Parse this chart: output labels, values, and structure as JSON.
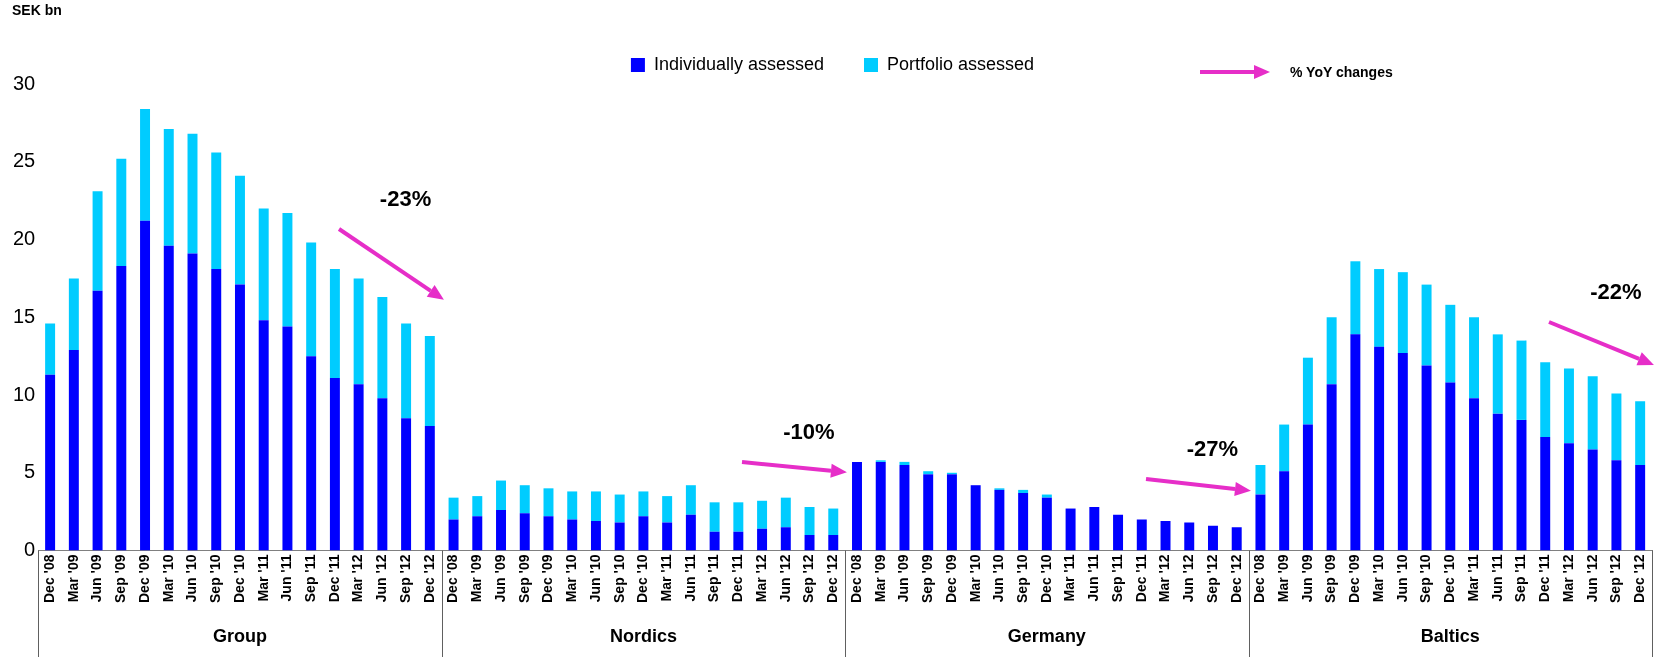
{
  "chart_data": {
    "type": "bar",
    "stacked": true,
    "ylabel": "SEK bn",
    "ylim": [
      0,
      30
    ],
    "yticks": [
      0,
      5,
      10,
      15,
      20,
      25,
      30
    ],
    "grid": false,
    "legend": "top",
    "categories": [
      "Dec '08",
      "Mar '09",
      "Jun '09",
      "Sep '09",
      "Dec '09",
      "Mar '10",
      "Jun '10",
      "Sep '10",
      "Dec '10",
      "Mar '11",
      "Jun '11",
      "Sep '11",
      "Dec '11",
      "Mar '12",
      "Jun '12",
      "Sep '12",
      "Dec '12",
      "Dec '08",
      "Mar '09",
      "Jun '09",
      "Sep '09",
      "Dec '09",
      "Mar '10",
      "Jun '10",
      "Sep '10",
      "Dec '10",
      "Mar '11",
      "Jun '11",
      "Sep '11",
      "Dec '11",
      "Mar '12",
      "Jun '12",
      "Sep '12",
      "Dec '12",
      "Dec '08",
      "Mar '09",
      "Jun '09",
      "Sep '09",
      "Dec '09",
      "Mar '10",
      "Jun '10",
      "Sep '10",
      "Dec '10",
      "Mar '11",
      "Jun '11",
      "Sep '11",
      "Dec '11",
      "Mar '12",
      "Jun '12",
      "Sep '12",
      "Dec '12",
      "Dec '08",
      "Mar '09",
      "Jun '09",
      "Sep '09",
      "Dec '09",
      "Mar '10",
      "Jun '10",
      "Sep '10",
      "Dec '10",
      "Mar '11",
      "Jun '11",
      "Sep '11",
      "Dec '11",
      "Mar '12",
      "Jun '12",
      "Sep '12",
      "Dec '12"
    ],
    "series": [
      {
        "name": "Individually assessed",
        "color": "#0000ff",
        "values": [
          11.3,
          12.9,
          16.7,
          18.3,
          21.2,
          19.6,
          19.1,
          18.1,
          17.1,
          14.8,
          14.4,
          12.5,
          11.1,
          10.7,
          9.8,
          8.5,
          8.0,
          2.0,
          2.2,
          2.6,
          2.4,
          2.2,
          2.0,
          1.9,
          1.8,
          2.2,
          1.8,
          2.3,
          1.2,
          1.2,
          1.4,
          1.5,
          1.0,
          1.0,
          5.7,
          5.7,
          5.5,
          4.9,
          4.9,
          4.2,
          3.9,
          3.7,
          3.4,
          2.7,
          2.8,
          2.3,
          2.0,
          1.9,
          1.8,
          1.6,
          1.5,
          3.6,
          5.1,
          8.1,
          10.7,
          13.9,
          13.1,
          12.7,
          11.9,
          10.8,
          9.8,
          8.8,
          8.4,
          7.3,
          6.9,
          6.5,
          5.8,
          5.5
        ]
      },
      {
        "name": "Portfolio assessed",
        "color": "#00ccff",
        "values": [
          3.3,
          4.6,
          6.4,
          6.9,
          7.2,
          7.5,
          7.7,
          7.5,
          7.0,
          7.2,
          7.3,
          7.3,
          7.0,
          6.8,
          6.5,
          6.1,
          5.8,
          1.4,
          1.3,
          1.9,
          1.8,
          1.8,
          1.8,
          1.9,
          1.8,
          1.6,
          1.7,
          1.9,
          1.9,
          1.9,
          1.8,
          1.9,
          1.8,
          1.7,
          0,
          0.1,
          0.2,
          0.2,
          0.1,
          0,
          0.1,
          0.2,
          0.2,
          0,
          0,
          0,
          0,
          0,
          0,
          0,
          0,
          1.9,
          3.0,
          4.3,
          4.3,
          4.7,
          5.0,
          5.2,
          5.2,
          5.0,
          5.2,
          5.1,
          5.1,
          4.8,
          4.8,
          4.7,
          4.3,
          4.1
        ]
      }
    ],
    "annotations": [
      "Group",
      "Nordics",
      "Germany",
      "Baltics",
      "-23%",
      "-10%",
      "-27%",
      "-22%",
      "% YoY changes"
    ]
  }
}
